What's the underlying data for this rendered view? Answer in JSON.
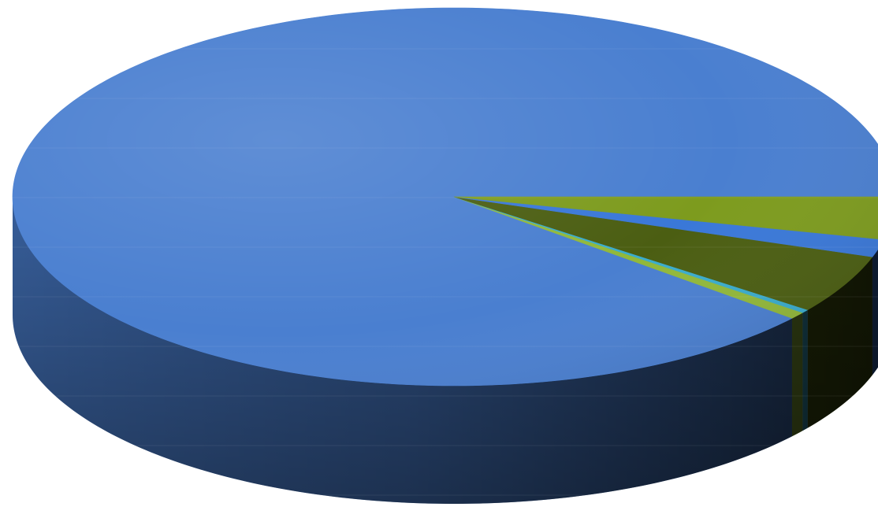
{
  "chart_data": {
    "type": "pie",
    "style": "3d",
    "title": "",
    "legend": "none",
    "data_labels": false,
    "slices": [
      {
        "value": 88.0,
        "color": "#4a7fd0"
      },
      {
        "value": 0.6,
        "color": "#92b83a"
      },
      {
        "value": 0.3,
        "color": "#3aaccd"
      },
      {
        "value": 5.0,
        "color": "#4b5e12"
      },
      {
        "value": 1.5,
        "color": "#3a78d8"
      },
      {
        "value": 3.6,
        "color": "#7d9b1e"
      }
    ],
    "start_angle_deg": 0,
    "direction": "counterclockwise"
  }
}
